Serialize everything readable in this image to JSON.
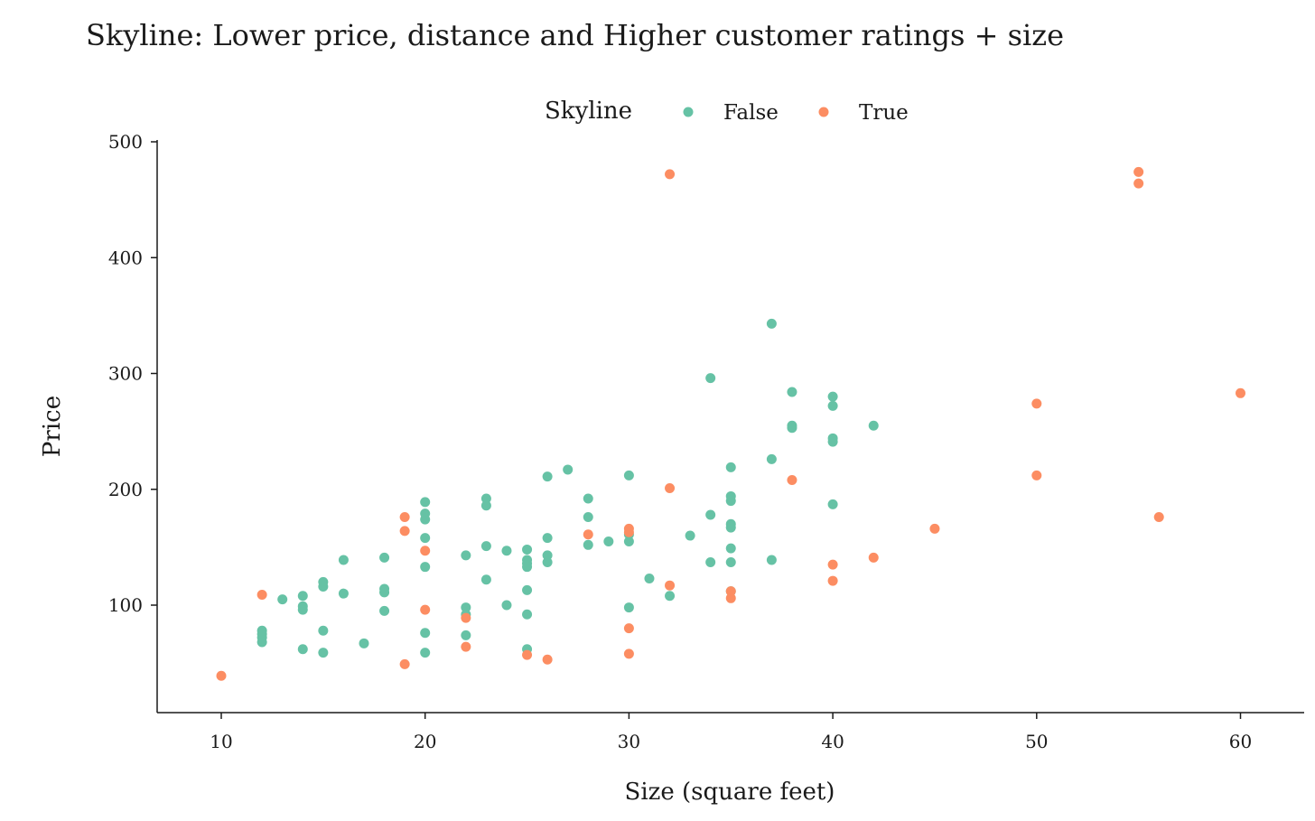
{
  "chart_data": {
    "type": "scatter",
    "title": "Skyline: Lower price, distance and Higher customer ratings + size",
    "xlabel": "Size (square feet)",
    "ylabel": "Price",
    "xlim": [
      7,
      63
    ],
    "ylim": [
      10,
      502
    ],
    "x_ticks": [
      10,
      20,
      30,
      40,
      50,
      60
    ],
    "y_ticks": [
      100,
      200,
      300,
      400,
      500
    ],
    "grid": false,
    "legend": {
      "title": "Skyline",
      "position": "top-center"
    },
    "series": [
      {
        "name": "False",
        "color": "#66c2a5",
        "points": [
          [
            12,
            78
          ],
          [
            12,
            75
          ],
          [
            12,
            72
          ],
          [
            12,
            68
          ],
          [
            13,
            105
          ],
          [
            14,
            108
          ],
          [
            14,
            99
          ],
          [
            14,
            96
          ],
          [
            14,
            62
          ],
          [
            15,
            120
          ],
          [
            15,
            116
          ],
          [
            15,
            78
          ],
          [
            15,
            59
          ],
          [
            16,
            139
          ],
          [
            16,
            110
          ],
          [
            17,
            67
          ],
          [
            18,
            141
          ],
          [
            18,
            114
          ],
          [
            18,
            111
          ],
          [
            18,
            95
          ],
          [
            20,
            189
          ],
          [
            20,
            179
          ],
          [
            20,
            174
          ],
          [
            20,
            158
          ],
          [
            20,
            133
          ],
          [
            20,
            76
          ],
          [
            20,
            59
          ],
          [
            22,
            143
          ],
          [
            22,
            98
          ],
          [
            22,
            92
          ],
          [
            22,
            74
          ],
          [
            23,
            192
          ],
          [
            23,
            186
          ],
          [
            23,
            151
          ],
          [
            23,
            122
          ],
          [
            24,
            147
          ],
          [
            24,
            100
          ],
          [
            25,
            148
          ],
          [
            25,
            139
          ],
          [
            25,
            136
          ],
          [
            25,
            133
          ],
          [
            25,
            113
          ],
          [
            25,
            92
          ],
          [
            25,
            62
          ],
          [
            26,
            211
          ],
          [
            26,
            158
          ],
          [
            26,
            143
          ],
          [
            26,
            137
          ],
          [
            27,
            217
          ],
          [
            28,
            192
          ],
          [
            28,
            176
          ],
          [
            28,
            152
          ],
          [
            29,
            155
          ],
          [
            30,
            212
          ],
          [
            30,
            161
          ],
          [
            30,
            155
          ],
          [
            30,
            98
          ],
          [
            31,
            123
          ],
          [
            32,
            108
          ],
          [
            33,
            160
          ],
          [
            34,
            296
          ],
          [
            34,
            178
          ],
          [
            34,
            137
          ],
          [
            35,
            219
          ],
          [
            35,
            194
          ],
          [
            35,
            190
          ],
          [
            35,
            170
          ],
          [
            35,
            167
          ],
          [
            35,
            149
          ],
          [
            35,
            137
          ],
          [
            35,
            112
          ],
          [
            37,
            343
          ],
          [
            37,
            226
          ],
          [
            37,
            139
          ],
          [
            38,
            284
          ],
          [
            38,
            255
          ],
          [
            38,
            253
          ],
          [
            40,
            280
          ],
          [
            40,
            272
          ],
          [
            40,
            244
          ],
          [
            40,
            241
          ],
          [
            40,
            187
          ],
          [
            42,
            255
          ]
        ]
      },
      {
        "name": "True",
        "color": "#fc8d62",
        "points": [
          [
            10,
            39
          ],
          [
            12,
            109
          ],
          [
            19,
            176
          ],
          [
            19,
            164
          ],
          [
            19,
            49
          ],
          [
            20,
            147
          ],
          [
            20,
            96
          ],
          [
            22,
            89
          ],
          [
            22,
            64
          ],
          [
            25,
            57
          ],
          [
            26,
            53
          ],
          [
            28,
            161
          ],
          [
            30,
            166
          ],
          [
            30,
            163
          ],
          [
            30,
            80
          ],
          [
            30,
            58
          ],
          [
            32,
            472
          ],
          [
            32,
            201
          ],
          [
            32,
            117
          ],
          [
            35,
            112
          ],
          [
            35,
            106
          ],
          [
            38,
            208
          ],
          [
            40,
            135
          ],
          [
            40,
            121
          ],
          [
            42,
            141
          ],
          [
            45,
            166
          ],
          [
            50,
            274
          ],
          [
            50,
            212
          ],
          [
            55,
            474
          ],
          [
            55,
            464
          ],
          [
            56,
            176
          ],
          [
            60,
            283
          ]
        ]
      }
    ]
  }
}
